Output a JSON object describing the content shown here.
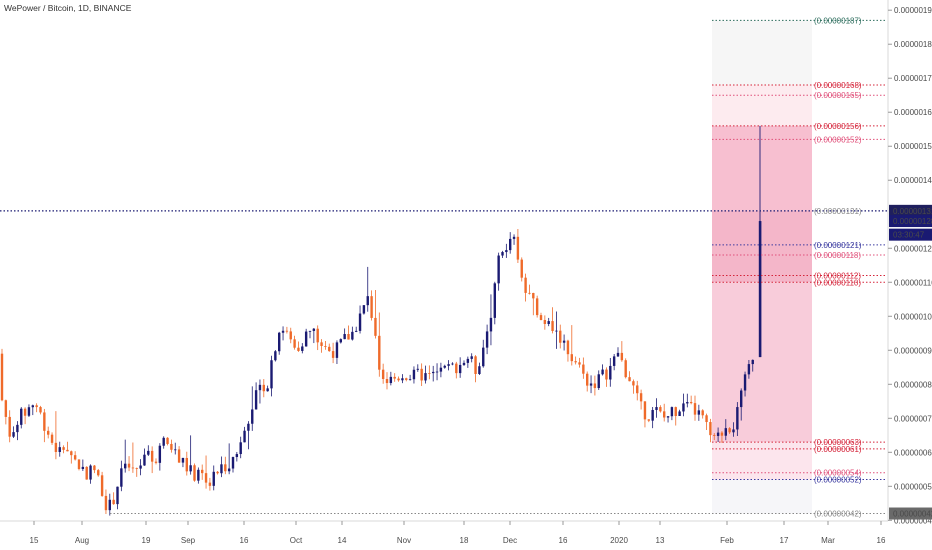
{
  "header": {
    "title": "WePower / Bitcoin, 1D, BINANCE"
  },
  "colors": {
    "up": "#1a1a72",
    "down": "#ef6a2a",
    "price_line": "#1a1a72",
    "fib_green": "#2e6e5e",
    "fib_red": "#d5243a",
    "fib_pink": "#e0507a",
    "fib_blue": "#3a3aa0",
    "fib_gray": "#888888"
  },
  "chart_data": {
    "type": "candlestick",
    "title": "WePower / Bitcoin, 1D, BINANCE",
    "ylim": [
      4e-07,
      1.93e-06
    ],
    "y_ticks": [
      "0.00000190",
      "0.00000180",
      "0.00000170",
      "0.00000160",
      "0.00000150",
      "0.00000140",
      "0.00000120",
      "0.00000110",
      "0.00000100",
      "0.00000090",
      "0.00000080",
      "0.00000070",
      "0.00000060",
      "0.00000050",
      "0.00000040"
    ],
    "x_ticks": [
      "15",
      "Aug",
      "19",
      "Sep",
      "16",
      "Oct",
      "14",
      "Nov",
      "18",
      "Dec",
      "16",
      "2020",
      "13",
      "Feb",
      "17",
      "Mar",
      "16"
    ],
    "price_labels": {
      "last_price": "0.00000131",
      "current_price": "0.00000128",
      "countdown": "03:30:47"
    },
    "fib_levels": [
      {
        "label": "(0.00000187)",
        "value": 1.87e-06,
        "color": "green"
      },
      {
        "label": "(0.00000168)",
        "value": 1.68e-06,
        "color": "red"
      },
      {
        "label": "(0.00000165)",
        "value": 1.65e-06,
        "color": "pink"
      },
      {
        "label": "(0.00000156)",
        "value": 1.56e-06,
        "color": "red"
      },
      {
        "label": "(0.00000152)",
        "value": 1.52e-06,
        "color": "pink"
      },
      {
        "label": "(0.00000131)",
        "value": 1.31e-06,
        "color": "gray"
      },
      {
        "label": "(0.00000121)",
        "value": 1.21e-06,
        "color": "blue"
      },
      {
        "label": "(0.00000118)",
        "value": 1.18e-06,
        "color": "pink"
      },
      {
        "label": "(0.00000112)",
        "value": 1.12e-06,
        "color": "red"
      },
      {
        "label": "(0.00000110)",
        "value": 1.1e-06,
        "color": "red"
      },
      {
        "label": "(0.00000063)",
        "value": 6.3e-07,
        "color": "red"
      },
      {
        "label": "(0.00000061)",
        "value": 6.1e-07,
        "color": "red"
      },
      {
        "label": "(0.00000054)",
        "value": 5.4e-07,
        "color": "pink"
      },
      {
        "label": "(0.00000052)",
        "value": 5.2e-07,
        "color": "blue"
      },
      {
        "label": "(0.00000042)",
        "value": 4.2e-07,
        "color": "gray"
      }
    ]
  }
}
